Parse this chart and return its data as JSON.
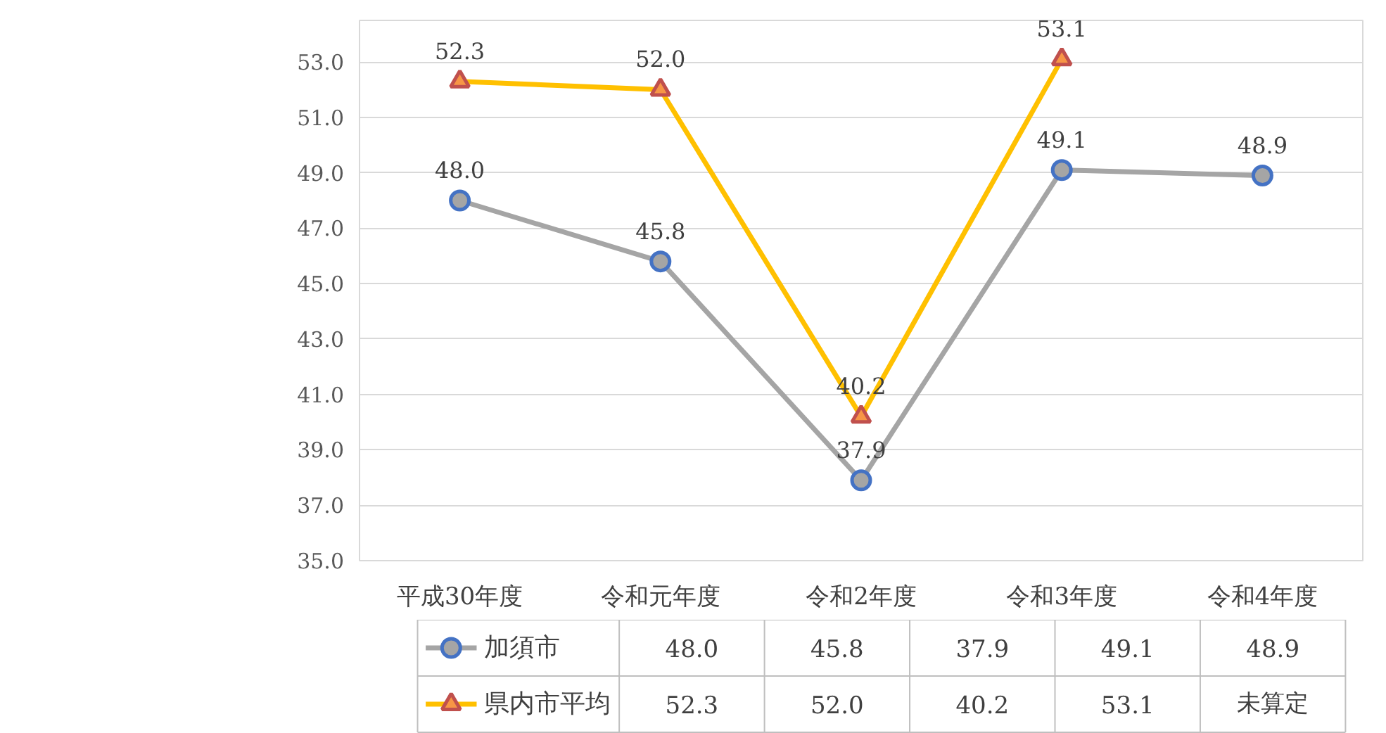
{
  "chart_data": {
    "type": "line",
    "categories": [
      "平成30年度",
      "令和元年度",
      "令和2年度",
      "令和3年度",
      "令和4年度"
    ],
    "series": [
      {
        "name": "加須市",
        "color": "#a5a5a5",
        "marker": "circle",
        "values": [
          48.0,
          45.8,
          37.9,
          49.1,
          48.9
        ],
        "value_labels": [
          "48.0",
          "45.8",
          "37.9",
          "49.1",
          "48.9"
        ]
      },
      {
        "name": "県内市平均",
        "color": "#ffc000",
        "marker": "triangle",
        "values": [
          52.3,
          52.0,
          40.2,
          53.1,
          null
        ],
        "value_labels": [
          "52.3",
          "52.0",
          "40.2",
          "53.1",
          "未算定"
        ]
      }
    ],
    "ylim": [
      35,
      54.5
    ],
    "yticks": [
      {
        "value": 35,
        "label": "35.0"
      },
      {
        "value": 37,
        "label": "37.0"
      },
      {
        "value": 39,
        "label": "39.0"
      },
      {
        "value": 41,
        "label": "41.0"
      },
      {
        "value": 43,
        "label": "43.0"
      },
      {
        "value": 45,
        "label": "45.0"
      },
      {
        "value": 47,
        "label": "47.0"
      },
      {
        "value": 49,
        "label": "49.0"
      },
      {
        "value": 51,
        "label": "51.0"
      },
      {
        "value": 53,
        "label": "53.0"
      }
    ],
    "grid": "y",
    "legend": "bottom",
    "line_style": "solid"
  }
}
